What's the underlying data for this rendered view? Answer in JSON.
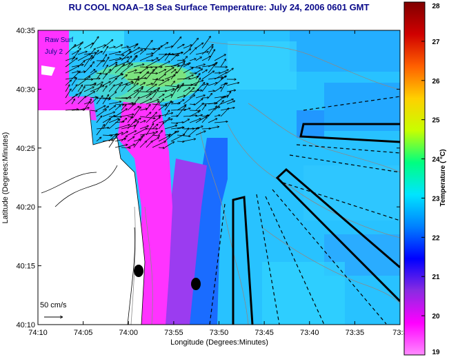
{
  "title": "RU COOL  NOAA–18  Sea Surface Temperature:  July 24, 2006 0601 GMT",
  "overlay_text": {
    "line1": "Raw Surf",
    "line2": "July 2"
  },
  "scale_label": "50 cm/s",
  "x_axis": {
    "title": "Longitude (Degrees:Minutes)",
    "ticks": [
      "74:10",
      "74:05",
      "74:00",
      "73:55",
      "73:50",
      "73:45",
      "73:40",
      "73:35",
      "73:3"
    ]
  },
  "y_axis": {
    "title": "Latitude (Degrees:Minutes)",
    "ticks": [
      "40:35",
      "40:30",
      "40:25",
      "40:20",
      "40:15",
      "40:10"
    ]
  },
  "colorbar": {
    "title": "Temperature ( °C)",
    "ticks": [
      "28",
      "27",
      "26",
      "25",
      "24",
      "23",
      "22",
      "21",
      "20",
      "19"
    ],
    "min": 19,
    "max": 28,
    "stops": [
      "#ff8cff",
      "#ff00ff",
      "#8a2be2",
      "#0000ff",
      "#0080ff",
      "#00e5ff",
      "#00ff80",
      "#c8ff00",
      "#ffd000",
      "#ff6000",
      "#d00000",
      "#800000"
    ]
  },
  "colors": {
    "land": "#ffffff",
    "magenta": "#ff33ff",
    "violet": "#9f3fe6",
    "blue": "#1e6dff",
    "sky": "#22b7ff",
    "cyan": "#36dcff",
    "green": "#6fe38c",
    "title_text": "#0a0a8a"
  }
}
